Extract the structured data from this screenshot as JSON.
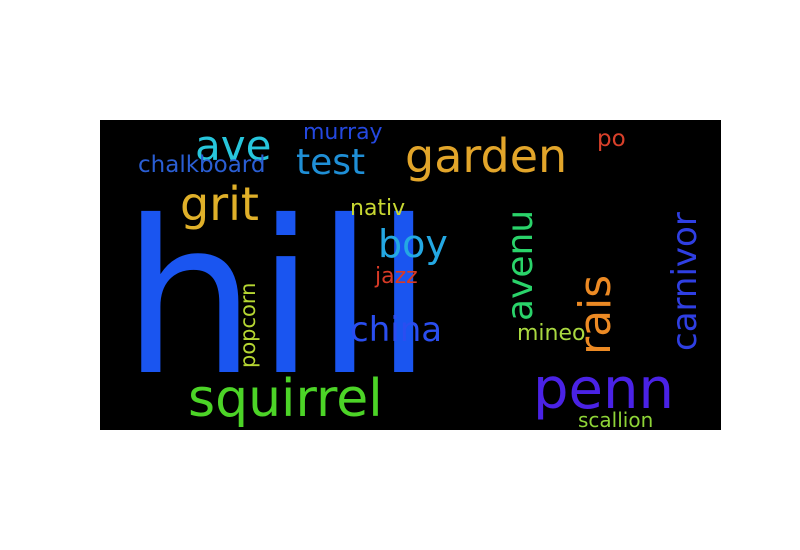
{
  "wordcloud": {
    "words": [
      {
        "text": "hill",
        "color": "#1a55f0"
      },
      {
        "text": "penn",
        "color": "#4a22e6"
      },
      {
        "text": "squirrel",
        "color": "#4cd427"
      },
      {
        "text": "garden",
        "color": "#e2a52a"
      },
      {
        "text": "grit",
        "color": "#e0b029"
      },
      {
        "text": "ave",
        "color": "#27c6dc"
      },
      {
        "text": "test",
        "color": "#1f8fd6"
      },
      {
        "text": "boy",
        "color": "#24a8e3"
      },
      {
        "text": "china",
        "color": "#2a4ef0"
      },
      {
        "text": "avenu",
        "color": "#2ad36a"
      },
      {
        "text": "rais",
        "color": "#ec8a24"
      },
      {
        "text": "carnivor",
        "color": "#2f3fe3"
      },
      {
        "text": "chalkboard",
        "color": "#2a5ed4"
      },
      {
        "text": "murray",
        "color": "#2448e0"
      },
      {
        "text": "po",
        "color": "#d8402a"
      },
      {
        "text": "nativ",
        "color": "#c8d832"
      },
      {
        "text": "jazz",
        "color": "#d83a26"
      },
      {
        "text": "popcorn",
        "color": "#b6d632"
      },
      {
        "text": "mineo",
        "color": "#a9d840"
      },
      {
        "text": "scallion",
        "color": "#8ed437"
      }
    ]
  }
}
